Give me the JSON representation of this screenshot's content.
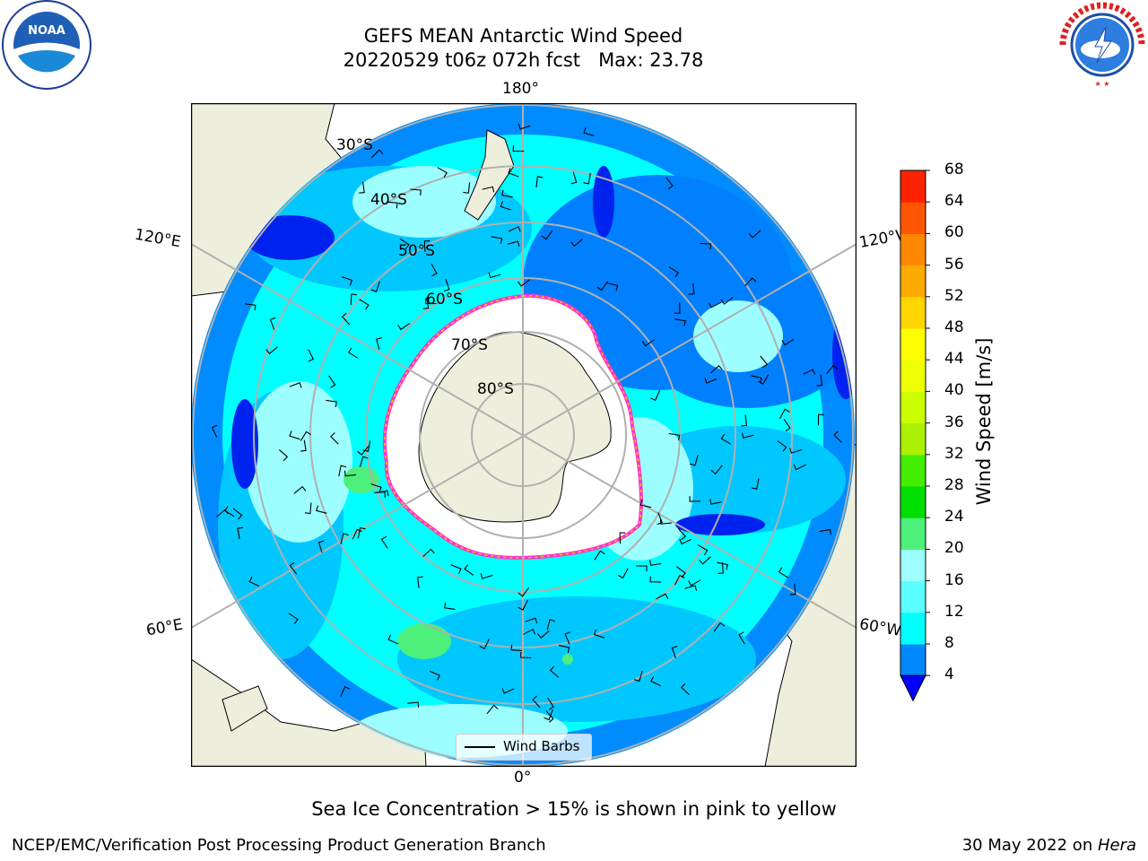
{
  "title": {
    "line1": "GEFS MEAN Antarctic Wind Speed",
    "line2": "20220529 t06z 072h fcst   Max: 23.78"
  },
  "logos": {
    "left": {
      "name": "noaa-logo",
      "text": "NOAA"
    },
    "right": {
      "name": "national-weather-service-logo",
      "text": "NATIONAL WEATHER SERVICE"
    }
  },
  "map": {
    "projection": "south-polar-stereographic",
    "longitude_labels": {
      "top": "180°",
      "bottom": "0°",
      "upper_left": "120°E",
      "upper_right": "120°W",
      "lower_left": "60°E",
      "lower_right": "60°W"
    },
    "latitude_labels": [
      "30°S",
      "40°S",
      "50°S",
      "60°S",
      "70°S",
      "80°S"
    ],
    "colors": {
      "land": "#eeeedc",
      "ocean_light": "#00ffff",
      "ocean_pale": "#9dfeff",
      "ocean_mid": "#00c8ff",
      "ocean_blue": "#0080ff",
      "ocean_dark": "#0022ee",
      "green": "#4cf07a",
      "sea_ice": "#ffffff",
      "ice_edge_pink": "#ff33cc",
      "ice_edge_yellow": "#ffc800"
    },
    "legend_label": "Wind Barbs"
  },
  "colorbar": {
    "label": "Wind Speed [m/s]",
    "ticks": [
      "4",
      "8",
      "12",
      "16",
      "20",
      "24",
      "28",
      "32",
      "36",
      "40",
      "44",
      "48",
      "52",
      "56",
      "60",
      "64",
      "68"
    ],
    "colors": [
      "#0088ff",
      "#00ffff",
      "#5cffff",
      "#9dffff",
      "#4cf07a",
      "#00e000",
      "#44ee00",
      "#aaf000",
      "#ccff00",
      "#eeff00",
      "#ffff00",
      "#ffd600",
      "#ffaa00",
      "#ff8800",
      "#ff5500",
      "#ff2200"
    ],
    "extend_color": "#0000ff"
  },
  "notes": {
    "sea_ice": "Sea Ice Concentration > 15% is shown in pink to yellow",
    "footer_left": "NCEP/EMC/Verification Post Processing Product Generation Branch",
    "footer_right_date": "30 May 2022 on ",
    "footer_right_machine": "Hera"
  }
}
